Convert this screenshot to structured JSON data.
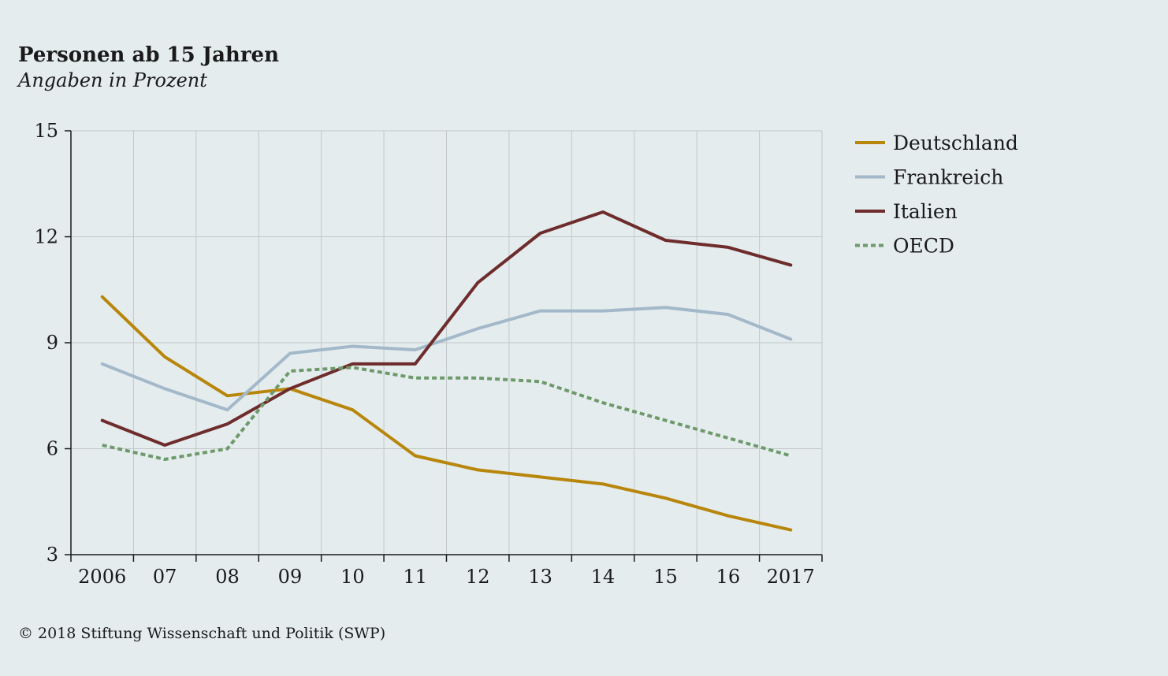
{
  "chart_data": {
    "type": "line",
    "title": "Personen ab 15 Jahren",
    "subtitle": "Angaben in Prozent",
    "x": [
      "2006",
      "07",
      "08",
      "09",
      "10",
      "11",
      "12",
      "13",
      "14",
      "15",
      "16",
      "2017"
    ],
    "ylim": [
      3,
      15
    ],
    "yticks": [
      3,
      6,
      9,
      12,
      15
    ],
    "grid": true,
    "legend_position": "right",
    "series": [
      {
        "name": "Deutschland",
        "color": "#b8860b",
        "dashed": false,
        "values": [
          10.3,
          8.6,
          7.5,
          7.7,
          7.1,
          5.8,
          5.4,
          5.2,
          5.0,
          4.6,
          4.1,
          3.7
        ]
      },
      {
        "name": "Frankreich",
        "color": "#a3b9c9",
        "dashed": false,
        "values": [
          8.4,
          7.7,
          7.1,
          8.7,
          8.9,
          8.8,
          9.4,
          9.9,
          9.9,
          10.0,
          9.8,
          9.1
        ]
      },
      {
        "name": "Italien",
        "color": "#6e2c2c",
        "dashed": false,
        "values": [
          6.8,
          6.1,
          6.7,
          7.7,
          8.4,
          8.4,
          10.7,
          12.1,
          12.7,
          11.9,
          11.7,
          11.2
        ]
      },
      {
        "name": "OECD",
        "color": "#6e9a6b",
        "dashed": true,
        "values": [
          6.1,
          5.7,
          6.0,
          8.2,
          8.3,
          8.0,
          8.0,
          7.9,
          7.3,
          6.8,
          6.3,
          5.8
        ]
      }
    ]
  },
  "footer": "© 2018 Stiftung Wissenschaft und Politik (SWP)"
}
